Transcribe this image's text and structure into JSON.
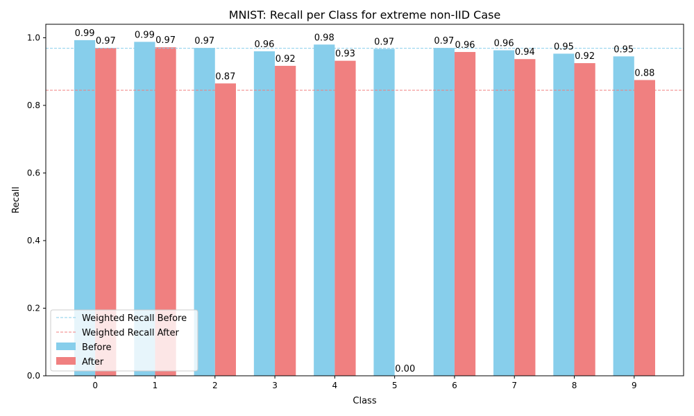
{
  "chart_data": {
    "type": "bar",
    "title": "MNIST: Recall per Class for extreme non-IID Case",
    "xlabel": "Class",
    "ylabel": "Recall",
    "categories": [
      "0",
      "1",
      "2",
      "3",
      "4",
      "5",
      "6",
      "7",
      "8",
      "9"
    ],
    "series": [
      {
        "name": "Before",
        "color": "#87ceeb",
        "values": [
          0.993,
          0.988,
          0.97,
          0.96,
          0.98,
          0.967,
          0.97,
          0.963,
          0.953,
          0.945
        ],
        "labels": [
          "0.99",
          "0.99",
          "0.97",
          "0.96",
          "0.98",
          "0.97",
          "0.97",
          "0.96",
          "0.95",
          "0.95"
        ]
      },
      {
        "name": "After",
        "color": "#f08080",
        "values": [
          0.97,
          0.972,
          0.865,
          0.917,
          0.932,
          0.0,
          0.958,
          0.937,
          0.925,
          0.875
        ],
        "labels": [
          "0.97",
          "0.97",
          "0.87",
          "0.92",
          "0.93",
          "0.00",
          "0.96",
          "0.94",
          "0.92",
          "0.88"
        ]
      }
    ],
    "reference_lines": [
      {
        "name": "Weighted Recall Before",
        "value": 0.969,
        "color": "#87ceeb",
        "style": "dashed"
      },
      {
        "name": "Weighted Recall After",
        "value": 0.845,
        "color": "#f08080",
        "style": "dashed"
      }
    ],
    "ylim": [
      0,
      1.04
    ],
    "yticks": [
      "0.0",
      "0.2",
      "0.4",
      "0.6",
      "0.8",
      "1.0"
    ],
    "grid": false,
    "legend_position": "lower-left"
  }
}
